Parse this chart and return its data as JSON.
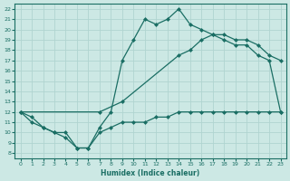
{
  "xlabel": "Humidex (Indice chaleur)",
  "bg_color": "#cce8e4",
  "line_color": "#1a6e64",
  "grid_color": "#b0d4d0",
  "xlim": [
    -0.5,
    23.5
  ],
  "ylim": [
    7.5,
    22.5
  ],
  "xticks": [
    0,
    1,
    2,
    3,
    4,
    5,
    6,
    7,
    8,
    9,
    10,
    11,
    12,
    13,
    14,
    15,
    16,
    17,
    18,
    19,
    20,
    21,
    22,
    23
  ],
  "yticks": [
    8,
    9,
    10,
    11,
    12,
    13,
    14,
    15,
    16,
    17,
    18,
    19,
    20,
    21,
    22
  ],
  "line_upper_x": [
    0,
    1,
    2,
    3,
    4,
    5,
    6,
    7,
    8,
    9,
    10,
    11,
    12,
    13,
    14,
    15,
    16,
    17,
    18,
    19,
    20,
    21,
    22,
    23
  ],
  "line_upper_y": [
    12,
    11.5,
    10.5,
    10,
    9.5,
    8.5,
    8.5,
    10.5,
    12,
    17,
    19,
    21,
    20.5,
    21,
    22,
    20.5,
    20,
    19.5,
    19,
    18.5,
    18.5,
    17.5,
    17,
    12
  ],
  "line_diag_x": [
    0,
    7,
    9,
    14,
    15,
    16,
    17,
    18,
    19,
    20,
    21,
    22,
    23
  ],
  "line_diag_y": [
    12,
    12,
    13,
    17.5,
    18,
    19,
    19.5,
    19.5,
    19,
    19,
    18.5,
    17.5,
    17
  ],
  "line_lower_x": [
    0,
    1,
    2,
    3,
    4,
    5,
    6,
    7,
    8,
    9,
    10,
    11,
    12,
    13,
    14,
    15,
    16,
    17,
    18,
    19,
    20,
    21,
    22,
    23
  ],
  "line_lower_y": [
    12,
    11,
    10.5,
    10,
    10,
    8.5,
    8.5,
    10,
    10.5,
    11,
    11,
    11,
    11.5,
    11.5,
    12,
    12,
    12,
    12,
    12,
    12,
    12,
    12,
    12,
    12
  ]
}
